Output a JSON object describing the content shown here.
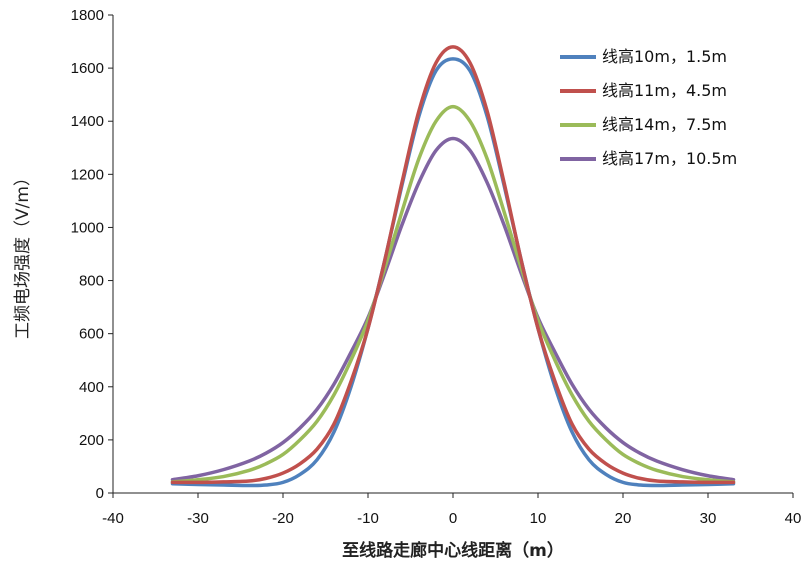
{
  "chart_data": {
    "type": "line",
    "title": "",
    "xlabel": "至线路走廊中心线距离（m）",
    "ylabel": "工频电场强度（V/m）",
    "xlim": [
      -40,
      40
    ],
    "ylim": [
      0,
      1800
    ],
    "xticks": [
      "-40",
      "-30",
      "-20",
      "-10",
      "0",
      "10",
      "20",
      "30",
      "40"
    ],
    "yticks": [
      "0",
      "200",
      "400",
      "600",
      "800",
      "1000",
      "1200",
      "1400",
      "1600",
      "1800"
    ],
    "grid": false,
    "legend_position": "top-right",
    "series": [
      {
        "name": "线高10m，1.5m",
        "color": "#4f81bd",
        "x": [
          -33,
          -30,
          -27,
          -24,
          -22,
          -20,
          -18,
          -16,
          -14,
          -12,
          -10,
          -8,
          -6,
          -4,
          -2,
          0,
          2,
          4,
          6,
          8,
          10,
          12,
          14,
          16,
          18,
          20,
          22,
          24,
          27,
          30,
          33
        ],
        "y": [
          35,
          32,
          30,
          28,
          30,
          40,
          70,
          125,
          230,
          400,
          620,
          880,
          1160,
          1420,
          1590,
          1635,
          1590,
          1420,
          1160,
          880,
          620,
          400,
          230,
          125,
          70,
          40,
          30,
          28,
          30,
          32,
          35
        ]
      },
      {
        "name": "线高11m，4.5m",
        "color": "#c0504d",
        "x": [
          -33,
          -30,
          -27,
          -24,
          -22,
          -20,
          -18,
          -16,
          -14,
          -12,
          -10,
          -8,
          -6,
          -4,
          -2,
          0,
          2,
          4,
          6,
          8,
          10,
          12,
          14,
          16,
          18,
          20,
          22,
          24,
          27,
          30,
          33
        ],
        "y": [
          40,
          40,
          42,
          45,
          55,
          75,
          110,
          165,
          260,
          420,
          620,
          880,
          1170,
          1440,
          1620,
          1680,
          1620,
          1440,
          1170,
          880,
          620,
          420,
          260,
          165,
          110,
          75,
          55,
          45,
          42,
          40,
          40
        ]
      },
      {
        "name": "线高14m，7.5m",
        "color": "#9bbb59",
        "x": [
          -33,
          -30,
          -27,
          -24,
          -22,
          -20,
          -18,
          -16,
          -14,
          -12,
          -10,
          -8,
          -6,
          -4,
          -2,
          0,
          2,
          4,
          6,
          8,
          10,
          12,
          14,
          16,
          18,
          20,
          22,
          24,
          27,
          30,
          33
        ],
        "y": [
          42,
          50,
          62,
          85,
          110,
          145,
          200,
          270,
          370,
          500,
          650,
          850,
          1060,
          1260,
          1400,
          1455,
          1400,
          1260,
          1060,
          850,
          650,
          500,
          370,
          270,
          200,
          145,
          110,
          85,
          62,
          50,
          42
        ]
      },
      {
        "name": "线高17m，10.5m",
        "color": "#8064a2",
        "x": [
          -33,
          -30,
          -27,
          -24,
          -22,
          -20,
          -18,
          -16,
          -14,
          -12,
          -10,
          -8,
          -6,
          -4,
          -2,
          0,
          2,
          4,
          6,
          8,
          10,
          12,
          14,
          16,
          18,
          20,
          22,
          24,
          27,
          30,
          33
        ],
        "y": [
          50,
          65,
          88,
          120,
          150,
          190,
          245,
          315,
          410,
          530,
          660,
          830,
          1010,
          1170,
          1290,
          1335,
          1290,
          1170,
          1010,
          830,
          660,
          530,
          410,
          315,
          245,
          190,
          150,
          120,
          88,
          65,
          50
        ]
      }
    ]
  }
}
